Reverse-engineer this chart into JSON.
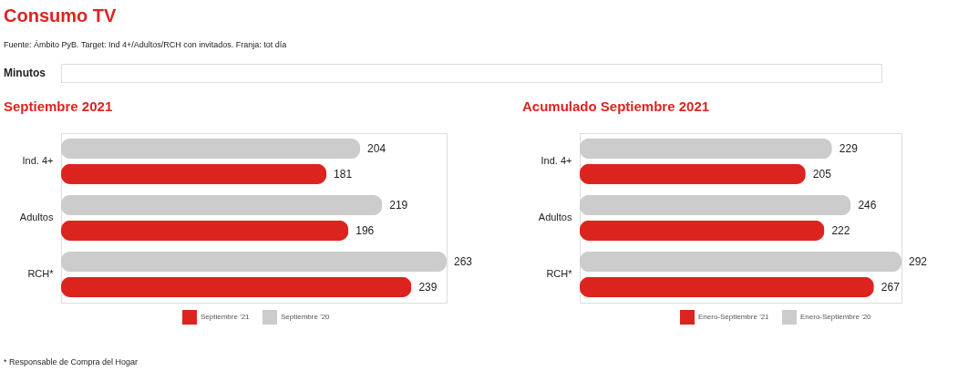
{
  "chart_data": [
    {
      "type": "other",
      "title": "Consumo TV",
      "subtitle": "Fuente: Ámbito PyB. Target: Ind 4+/Adultos/RCH con invitados. Franja: tot día",
      "annotations": [
        "Minutos"
      ]
    },
    {
      "type": "bar",
      "orientation": "horizontal",
      "title": "Septiembre 2021",
      "categories": [
        "Ind. 4+",
        "Adultos",
        "RCH*"
      ],
      "series": [
        {
          "name": "Septiembre '21",
          "color": "#dc241f",
          "values": [
            181,
            196,
            239
          ]
        },
        {
          "name": "Septiembre '20",
          "color": "#cccccc",
          "values": [
            204,
            219,
            263
          ]
        }
      ],
      "data_labels": true,
      "legend": "bottom",
      "annotations": [
        "* Responsable de Compra del Hogar"
      ]
    },
    {
      "type": "bar",
      "orientation": "horizontal",
      "title": "Acumulado Septiembre 2021",
      "categories": [
        "Ind. 4+",
        "Adultos",
        "RCH*"
      ],
      "series": [
        {
          "name": "Enero-Septiembre '21",
          "color": "#dc241f",
          "values": [
            205,
            222,
            267
          ]
        },
        {
          "name": "Enero-Septiembre '20",
          "color": "#cccccc",
          "values": [
            229,
            246,
            292
          ]
        }
      ],
      "data_labels": true,
      "legend": "bottom"
    }
  ]
}
